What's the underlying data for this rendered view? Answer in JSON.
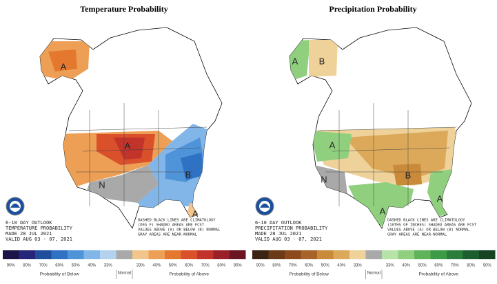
{
  "panels": [
    {
      "title": "Temperature Probability",
      "outlook": [
        "6-10 DAY OUTLOOK",
        "TEMPERATURE PROBABILITY",
        "MADE  28 JUL 2021",
        "VALID  AUG 03 - 07, 2021"
      ],
      "note": [
        "DASHED BLACK LINES ARE CLIMATOLOGY",
        "(DEG F) SHADED AREAS ARE FCST",
        "VALUES ABOVE (A) OR BELOW (B) NORMAL",
        "GRAY AREAS ARE NEAR-NORMAL"
      ],
      "labels": [
        "A",
        "A",
        "B",
        "N",
        "A"
      ],
      "legend": {
        "below": [
          "90%",
          "80%",
          "70%",
          "60%",
          "50%",
          "40%",
          "33%"
        ],
        "below_colors": [
          "#1b1446",
          "#25257a",
          "#1f4f9c",
          "#2f72c4",
          "#4f93d9",
          "#82b6e8",
          "#b4d2f0"
        ],
        "normal": "Normal",
        "normal_color": "#a9a9a9",
        "above": [
          "33%",
          "40%",
          "50%",
          "60%",
          "70%",
          "80%",
          "90%"
        ],
        "above_colors": [
          "#f2c58c",
          "#ed9f55",
          "#e4782f",
          "#d9502a",
          "#c2332a",
          "#9a2028",
          "#6b1422"
        ],
        "below_title": "Probability of Below",
        "above_title": "Probability of Above"
      }
    },
    {
      "title": "Precipitation Probability",
      "outlook": [
        "6-10 DAY OUTLOOK",
        "PRECIPITATION PROBABILITY",
        "MADE  28 JUL 2021",
        "VALID  AUG 03 - 07, 2021"
      ],
      "note": [
        "DASHED BLACK LINES ARE CLIMATOLOGY",
        "(10THS OF INCHES) SHADED AREAS ARE FCST",
        "VALUES ABOVE (A) OR BELOW (B) NORMAL",
        "GRAY AREAS ARE NEAR-NORMAL"
      ],
      "labels": [
        "A",
        "B",
        "A",
        "B",
        "N",
        "A",
        "A"
      ],
      "legend": {
        "below": [
          "90%",
          "80%",
          "70%",
          "60%",
          "50%",
          "40%",
          "33%"
        ],
        "below_colors": [
          "#3b2414",
          "#6b3a16",
          "#8c4a1c",
          "#a8632a",
          "#c98a3a",
          "#dca95a",
          "#efd29a"
        ],
        "normal": "Normal",
        "normal_color": "#a9a9a9",
        "above": [
          "33%",
          "40%",
          "50%",
          "60%",
          "70%",
          "80%",
          "90%"
        ],
        "above_colors": [
          "#b7e3a8",
          "#8fcf7e",
          "#5fb45a",
          "#3d9a45",
          "#2a7d3a",
          "#1d5e30",
          "#164423"
        ],
        "below_title": "Probability of Below",
        "above_title": "Probability of Above"
      }
    }
  ]
}
